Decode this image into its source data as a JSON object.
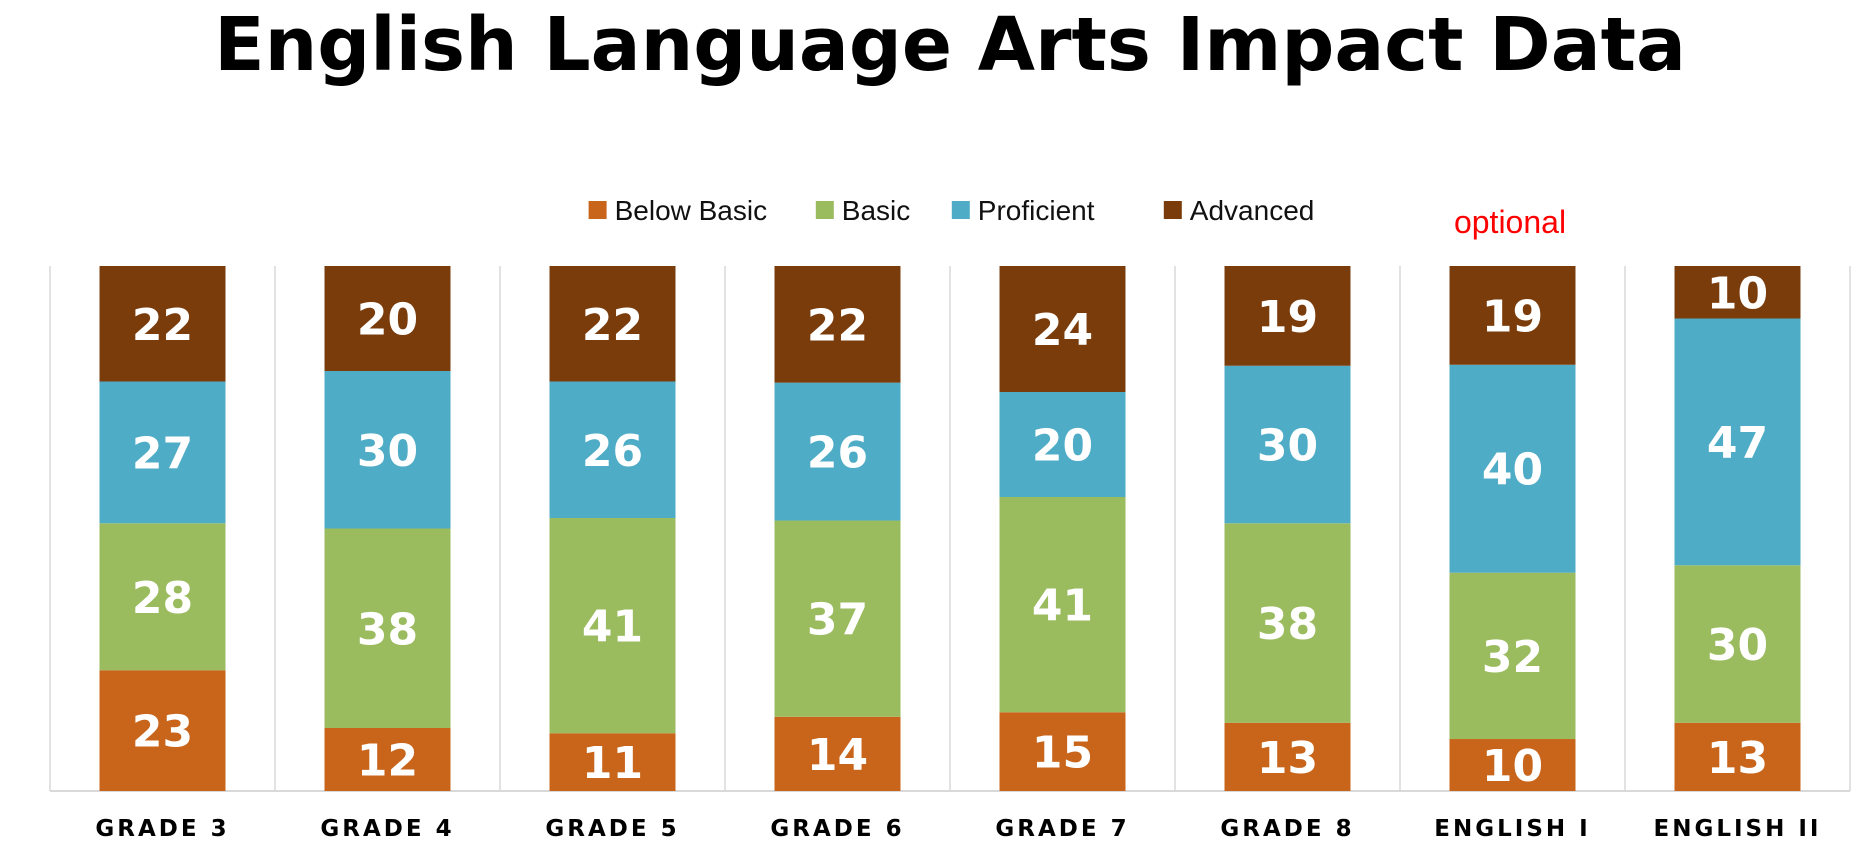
{
  "chart_data": {
    "type": "bar",
    "stacked": true,
    "percent_stacked": true,
    "title": "English Language Arts Impact Data",
    "annotation": "optional",
    "legend_position": "top",
    "grid": false,
    "categories": [
      "GRADE 3",
      "GRADE 4",
      "GRADE 5",
      "GRADE 6",
      "GRADE 7",
      "GRADE 8",
      "ENGLISH I",
      "ENGLISH II"
    ],
    "series": [
      {
        "name": "Below Basic",
        "color": "#c8651b",
        "values": [
          23,
          12,
          11,
          14,
          15,
          13,
          10,
          13
        ]
      },
      {
        "name": "Basic",
        "color": "#9bbb5f",
        "values": [
          28,
          38,
          41,
          37,
          41,
          38,
          32,
          30
        ]
      },
      {
        "name": "Proficient",
        "color": "#4facc6",
        "values": [
          27,
          30,
          26,
          26,
          20,
          30,
          40,
          47
        ]
      },
      {
        "name": "Advanced",
        "color": "#7b3c0c",
        "values": [
          22,
          20,
          22,
          22,
          24,
          19,
          19,
          10
        ]
      }
    ]
  }
}
